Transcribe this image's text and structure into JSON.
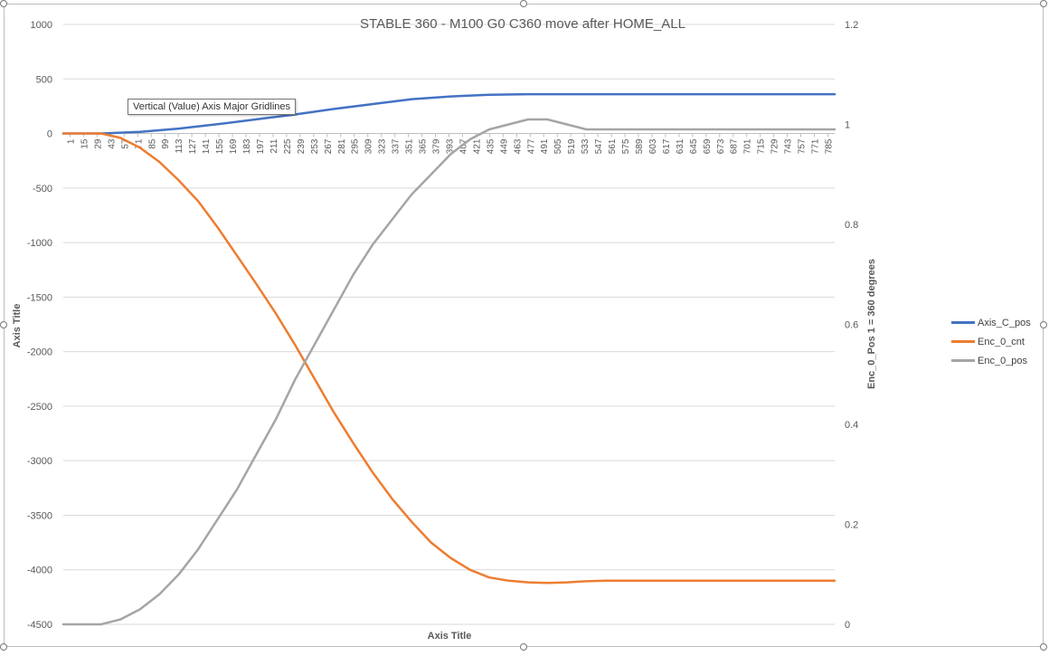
{
  "tooltip": "Vertical (Value) Axis Major Gridlines",
  "chart_data": {
    "type": "line",
    "title": "STABLE 360 - M100 G0 C360 move after HOME_ALL",
    "xlabel": "Axis Title",
    "ylabel": "Axis Title",
    "y2label": "Enc_0_Pos   1 = 360 degrees",
    "x_tick_labels": [
      "1",
      "15",
      "29",
      "43",
      "57",
      "71",
      "85",
      "99",
      "113",
      "127",
      "141",
      "155",
      "169",
      "183",
      "197",
      "211",
      "225",
      "239",
      "253",
      "267",
      "281",
      "295",
      "309",
      "323",
      "337",
      "351",
      "365",
      "379",
      "393",
      "407",
      "421",
      "435",
      "449",
      "463",
      "477",
      "491",
      "505",
      "519",
      "533",
      "547",
      "561",
      "575",
      "589",
      "603",
      "617",
      "631",
      "645",
      "659",
      "673",
      "687",
      "701",
      "715",
      "729",
      "743",
      "757",
      "771",
      "785"
    ],
    "xlim": [
      1,
      796
    ],
    "ylim": [
      -4500,
      1000
    ],
    "y_ticks": [
      1000,
      500,
      0,
      -500,
      -1000,
      -1500,
      -2000,
      -2500,
      -3000,
      -3500,
      -4000,
      -4500
    ],
    "y2lim": [
      0,
      1.2
    ],
    "y2_ticks": [
      "1.2",
      "1",
      "0.8",
      "0.6",
      "0.4",
      "0.2",
      "0"
    ],
    "grid": true,
    "legend_position": "right",
    "series": [
      {
        "name": "Axis_C_pos",
        "axis": "left",
        "color": "#4472c4",
        "x": [
          1,
          40,
          80,
          120,
          160,
          200,
          240,
          280,
          320,
          360,
          400,
          440,
          480,
          490,
          600,
          796
        ],
        "y": [
          0,
          0,
          15,
          45,
          85,
          130,
          175,
          225,
          270,
          315,
          340,
          355,
          360,
          360,
          360,
          360
        ]
      },
      {
        "name": "Enc_0_cnt",
        "axis": "left",
        "color": "#ed7d31",
        "x": [
          1,
          40,
          60,
          80,
          100,
          120,
          140,
          160,
          180,
          200,
          220,
          240,
          260,
          280,
          300,
          320,
          340,
          360,
          380,
          400,
          420,
          440,
          460,
          480,
          500,
          520,
          540,
          560,
          600,
          700,
          796
        ],
        "y": [
          0,
          0,
          -40,
          -130,
          -260,
          -430,
          -620,
          -860,
          -1120,
          -1380,
          -1650,
          -1940,
          -2250,
          -2560,
          -2840,
          -3110,
          -3350,
          -3560,
          -3750,
          -3890,
          -4000,
          -4070,
          -4100,
          -4115,
          -4120,
          -4115,
          -4105,
          -4100,
          -4100,
          -4100,
          -4100
        ]
      },
      {
        "name": "Enc_0_pos",
        "axis": "right",
        "color": "#a5a5a5",
        "x": [
          1,
          40,
          60,
          80,
          100,
          120,
          140,
          160,
          180,
          200,
          220,
          240,
          260,
          280,
          300,
          320,
          340,
          360,
          380,
          400,
          420,
          440,
          460,
          480,
          500,
          520,
          540,
          560,
          600,
          700,
          796
        ],
        "y": [
          0,
          0,
          0.01,
          0.03,
          0.06,
          0.1,
          0.15,
          0.21,
          0.27,
          0.34,
          0.41,
          0.49,
          0.56,
          0.63,
          0.7,
          0.76,
          0.81,
          0.86,
          0.9,
          0.94,
          0.97,
          0.99,
          1.0,
          1.01,
          1.01,
          1.0,
          0.99,
          0.99,
          0.99,
          0.99,
          0.99
        ]
      }
    ]
  }
}
